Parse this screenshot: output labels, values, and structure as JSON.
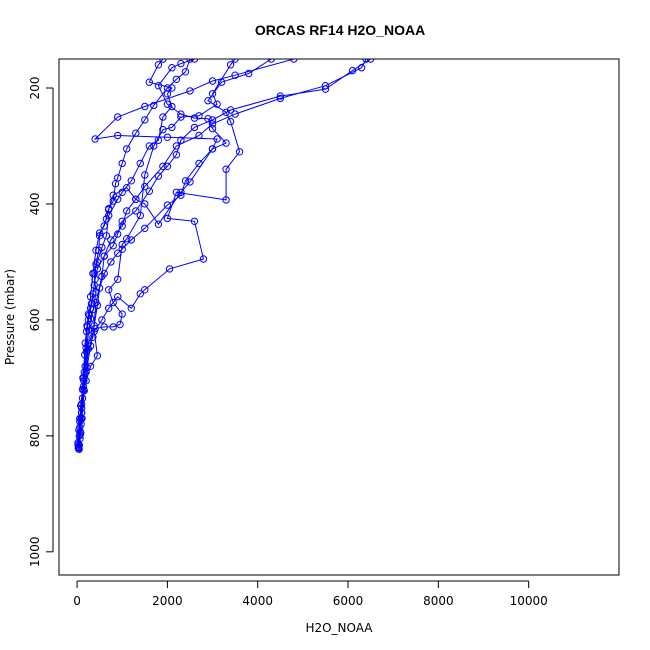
{
  "chart_data": {
    "type": "line",
    "title": "ORCAS RF14 H2O_NOAA",
    "xlabel": "H2O_NOAA",
    "ylabel": "Pressure (mbar)",
    "xlim": [
      -400,
      12000
    ],
    "ylim": [
      1040,
      150
    ],
    "y_inverted": true,
    "x_ticks": [
      0,
      2000,
      4000,
      6000,
      8000,
      10000
    ],
    "y_ticks": [
      200,
      400,
      600,
      800,
      1000
    ],
    "grid": false,
    "legend": "none",
    "marker": "open-circle",
    "color": "#0000ff",
    "series": [
      {
        "points": [
          [
            30,
            822
          ],
          [
            50,
            800
          ],
          [
            60,
            775
          ],
          [
            80,
            748
          ],
          [
            120,
            720
          ],
          [
            200,
            705
          ],
          [
            300,
            680
          ],
          [
            450,
            662
          ],
          [
            380,
            620
          ],
          [
            550,
            600
          ],
          [
            700,
            580
          ],
          [
            900,
            560
          ],
          [
            1200,
            580
          ],
          [
            1400,
            555
          ],
          [
            1500,
            548
          ],
          [
            2050,
            512
          ],
          [
            2800,
            495
          ],
          [
            2600,
            430
          ],
          [
            2000,
            425
          ],
          [
            2200,
            380
          ],
          [
            3300,
            393
          ],
          [
            3300,
            340
          ],
          [
            3600,
            310
          ],
          [
            3400,
            258
          ],
          [
            3300,
            242
          ],
          [
            2900,
            222
          ],
          [
            3200,
            190
          ],
          [
            3800,
            175
          ],
          [
            4300,
            150
          ]
        ]
      },
      {
        "points": [
          [
            20,
            815
          ],
          [
            40,
            790
          ],
          [
            60,
            770
          ],
          [
            100,
            745
          ],
          [
            150,
            705
          ],
          [
            250,
            640
          ],
          [
            400,
            615
          ],
          [
            600,
            612
          ],
          [
            800,
            612
          ],
          [
            950,
            608
          ],
          [
            1000,
            590
          ],
          [
            800,
            570
          ],
          [
            700,
            548
          ],
          [
            900,
            530
          ],
          [
            1000,
            470
          ],
          [
            1100,
            460
          ],
          [
            1400,
            420
          ],
          [
            1500,
            350
          ],
          [
            1700,
            300
          ],
          [
            1900,
            272
          ],
          [
            2100,
            268
          ],
          [
            2300,
            250
          ],
          [
            2700,
            248
          ],
          [
            3100,
            228
          ],
          [
            3000,
            210
          ],
          [
            3400,
            160
          ],
          [
            3500,
            150
          ]
        ]
      },
      {
        "points": [
          [
            30,
            820
          ],
          [
            80,
            795
          ],
          [
            100,
            760
          ],
          [
            150,
            720
          ],
          [
            200,
            690
          ],
          [
            250,
            650
          ],
          [
            350,
            630
          ],
          [
            420,
            570
          ],
          [
            550,
            525
          ],
          [
            600,
            490
          ],
          [
            750,
            462
          ],
          [
            1000,
            438
          ],
          [
            1100,
            412
          ],
          [
            1300,
            392
          ],
          [
            1500,
            370
          ],
          [
            1900,
            335
          ],
          [
            2200,
            300
          ],
          [
            2700,
            282
          ],
          [
            3000,
            262
          ],
          [
            3500,
            245
          ],
          [
            4500,
            218
          ],
          [
            5500,
            196
          ],
          [
            6300,
            165
          ],
          [
            6400,
            150
          ]
        ]
      },
      {
        "points": [
          [
            40,
            818
          ],
          [
            70,
            793
          ],
          [
            90,
            770
          ],
          [
            150,
            700
          ],
          [
            180,
            640
          ],
          [
            220,
            610
          ],
          [
            250,
            590
          ],
          [
            300,
            560
          ],
          [
            350,
            520
          ],
          [
            420,
            480
          ],
          [
            500,
            450
          ],
          [
            600,
            438
          ],
          [
            700,
            410
          ],
          [
            800,
            385
          ],
          [
            1100,
            372
          ],
          [
            1300,
            392
          ],
          [
            1500,
            400
          ],
          [
            1800,
            435
          ],
          [
            2300,
            380
          ],
          [
            2500,
            362
          ],
          [
            3000,
            305
          ],
          [
            3300,
            295
          ],
          [
            3000,
            270
          ],
          [
            2900,
            253
          ],
          [
            2600,
            252
          ],
          [
            2300,
            245
          ],
          [
            2000,
            228
          ],
          [
            1800,
            196
          ],
          [
            2100,
            165
          ],
          [
            2300,
            158
          ],
          [
            2600,
            150
          ]
        ]
      },
      {
        "points": [
          [
            50,
            816
          ],
          [
            90,
            780
          ],
          [
            120,
            735
          ],
          [
            160,
            690
          ],
          [
            210,
            655
          ],
          [
            260,
            618
          ],
          [
            300,
            598
          ],
          [
            360,
            582
          ],
          [
            420,
            552
          ],
          [
            380,
            520
          ],
          [
            450,
            500
          ],
          [
            550,
            475
          ],
          [
            650,
            455
          ],
          [
            700,
            420
          ],
          [
            900,
            392
          ],
          [
            1000,
            380
          ],
          [
            1200,
            360
          ],
          [
            1400,
            330
          ],
          [
            1600,
            300
          ],
          [
            1800,
            290
          ],
          [
            1900,
            250
          ],
          [
            2100,
            232
          ],
          [
            2000,
            210
          ],
          [
            2100,
            200
          ],
          [
            1600,
            190
          ],
          [
            1800,
            160
          ],
          [
            1900,
            150
          ]
        ]
      },
      {
        "points": [
          [
            20,
            812
          ],
          [
            60,
            785
          ],
          [
            100,
            752
          ],
          [
            140,
            715
          ],
          [
            180,
            680
          ],
          [
            200,
            648
          ],
          [
            230,
            612
          ],
          [
            270,
            592
          ],
          [
            320,
            572
          ],
          [
            380,
            540
          ],
          [
            420,
            504
          ],
          [
            480,
            480
          ],
          [
            500,
            455
          ],
          [
            650,
            426
          ],
          [
            700,
            408
          ],
          [
            800,
            395
          ],
          [
            850,
            365
          ],
          [
            900,
            355
          ],
          [
            1000,
            330
          ],
          [
            1100,
            305
          ],
          [
            1300,
            278
          ],
          [
            1500,
            255
          ],
          [
            1700,
            230
          ],
          [
            2000,
            200
          ],
          [
            2200,
            185
          ],
          [
            2400,
            172
          ],
          [
            2500,
            150
          ]
        ]
      },
      {
        "points": [
          [
            35,
            820
          ],
          [
            65,
            805
          ],
          [
            100,
            760
          ],
          [
            130,
            700
          ],
          [
            170,
            660
          ],
          [
            210,
            620
          ],
          [
            250,
            600
          ],
          [
            300,
            580
          ],
          [
            350,
            555
          ],
          [
            400,
            530
          ],
          [
            450,
            512
          ],
          [
            600,
            490
          ],
          [
            800,
            472
          ],
          [
            900,
            452
          ],
          [
            1000,
            430
          ],
          [
            1300,
            412
          ],
          [
            1600,
            378
          ],
          [
            1800,
            352
          ],
          [
            2000,
            335
          ],
          [
            2200,
            315
          ],
          [
            2300,
            290
          ],
          [
            2600,
            268
          ],
          [
            3000,
            255
          ],
          [
            3400,
            238
          ],
          [
            4500,
            214
          ],
          [
            5500,
            202
          ],
          [
            6100,
            170
          ],
          [
            6500,
            150
          ]
        ]
      },
      {
        "points": [
          [
            45,
            823
          ],
          [
            70,
            798
          ],
          [
            110,
            770
          ],
          [
            160,
            722
          ],
          [
            220,
            682
          ],
          [
            300,
            645
          ],
          [
            380,
            610
          ],
          [
            450,
            575
          ],
          [
            500,
            545
          ],
          [
            600,
            520
          ],
          [
            750,
            500
          ],
          [
            900,
            485
          ],
          [
            1000,
            478
          ],
          [
            1200,
            462
          ],
          [
            1500,
            442
          ],
          [
            2000,
            402
          ],
          [
            2300,
            385
          ],
          [
            2400,
            360
          ],
          [
            2700,
            330
          ],
          [
            3000,
            305
          ],
          [
            3100,
            288
          ],
          [
            2000,
            285
          ],
          [
            900,
            282
          ],
          [
            400,
            288
          ],
          [
            900,
            250
          ],
          [
            1500,
            232
          ],
          [
            2500,
            205
          ],
          [
            3000,
            188
          ],
          [
            3500,
            178
          ],
          [
            4800,
            150
          ]
        ]
      }
    ]
  }
}
